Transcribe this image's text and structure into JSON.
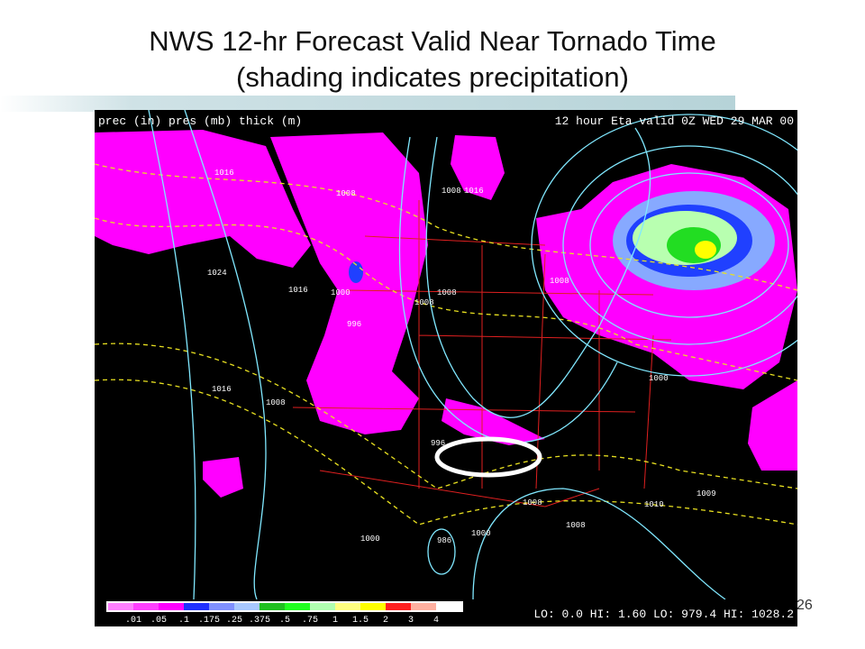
{
  "title": [
    "NWS 12-hr Forecast Valid Near Tornado Time",
    "(shading indicates precipitation)"
  ],
  "map": {
    "header_left": "prec (in) pres (mb) thick (m)",
    "header_right": "12 hour Eta valid 0Z WED 29 MAR 00",
    "contour_labels": [
      "1024",
      "1016",
      "1008",
      "1008",
      "1016",
      "1016",
      "1008",
      "1000",
      "996",
      "1008",
      "1000",
      "1008",
      "996",
      "1000",
      "1010",
      "1009",
      "1008",
      "1016",
      "1008",
      "1008",
      "986",
      "1000"
    ],
    "colorbar_labels": [
      ".01",
      ".05",
      ".1",
      ".175",
      ".25",
      ".375",
      ".5",
      ".75",
      "1",
      "1.5",
      "2",
      "3",
      "4"
    ],
    "stats": "LO: 0.0 HI: 1.60 LO: 979.4 HI: 1028.2"
  },
  "page_number": "26"
}
